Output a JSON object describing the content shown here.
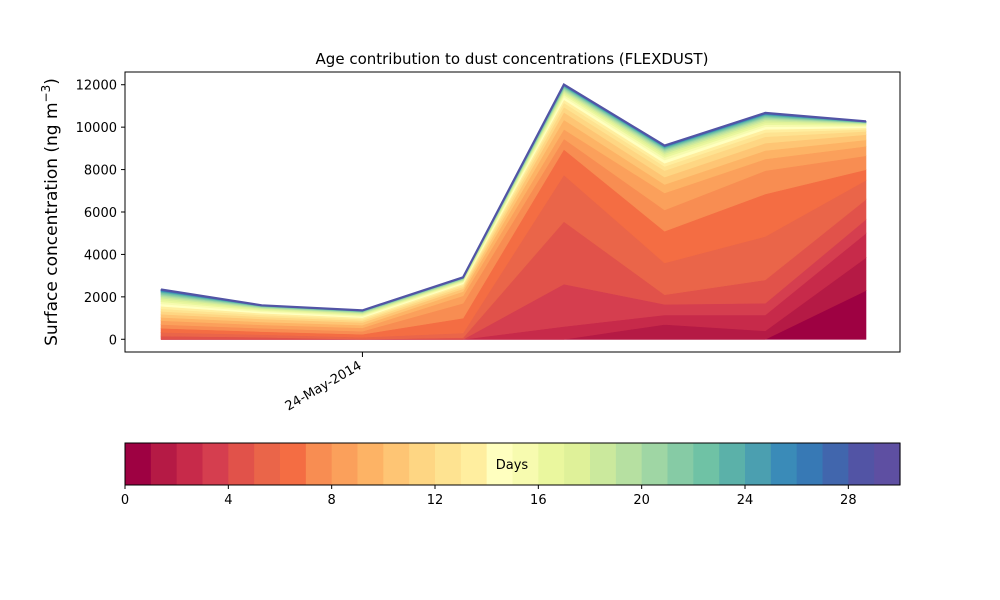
{
  "chart_data": {
    "type": "area",
    "stacked": true,
    "title": "Age contribution to dust concentrations (FLEXDUST)",
    "ylabel": "Surface concentration (ng m",
    "ylabel_sup": "−3",
    "ylabel_close": ")",
    "xlabel": "",
    "x": [
      0,
      1,
      2,
      3,
      4,
      5,
      6,
      7
    ],
    "x_tick_labels": [
      {
        "x": 2,
        "label": "24-May-2014"
      }
    ],
    "ylim": [
      -600,
      12600
    ],
    "y_ticks": [
      0,
      2000,
      4000,
      6000,
      8000,
      10000,
      12000
    ],
    "grid": false,
    "cumulative_top": [
      [
        0,
        0,
        0,
        0,
        0,
        0,
        0,
        2300
      ],
      [
        0,
        0,
        0,
        0,
        0,
        700,
        400,
        3850
      ],
      [
        0,
        0,
        0,
        0,
        600,
        1150,
        1150,
        5000
      ],
      [
        0,
        0,
        0,
        0,
        2600,
        1650,
        1700,
        5650
      ],
      [
        150,
        100,
        0,
        80,
        5550,
        2100,
        2800,
        6600
      ],
      [
        330,
        220,
        100,
        300,
        7750,
        3600,
        4850,
        7500
      ],
      [
        520,
        360,
        240,
        1000,
        8950,
        5100,
        6850,
        8000
      ],
      [
        700,
        520,
        380,
        1700,
        9450,
        6100,
        7950,
        8650
      ],
      [
        880,
        680,
        540,
        2050,
        9900,
        6900,
        8500,
        9100
      ],
      [
        1030,
        820,
        670,
        2250,
        10350,
        7300,
        8900,
        9400
      ],
      [
        1180,
        960,
        790,
        2380,
        10700,
        7650,
        9250,
        9650
      ],
      [
        1320,
        1060,
        880,
        2480,
        10950,
        7950,
        9550,
        9800
      ],
      [
        1440,
        1150,
        950,
        2560,
        11150,
        8150,
        9750,
        9900
      ],
      [
        1560,
        1230,
        1020,
        2620,
        11300,
        8300,
        9900,
        9970
      ],
      [
        1670,
        1300,
        1080,
        2670,
        11420,
        8450,
        10020,
        10030
      ],
      [
        1770,
        1360,
        1130,
        2710,
        11520,
        8570,
        10120,
        10080
      ],
      [
        1860,
        1410,
        1170,
        2750,
        11600,
        8670,
        10210,
        10120
      ],
      [
        1940,
        1450,
        1210,
        2780,
        11670,
        8760,
        10290,
        10150
      ],
      [
        2010,
        1480,
        1240,
        2810,
        11730,
        8830,
        10360,
        10170
      ],
      [
        2070,
        1510,
        1270,
        2830,
        11780,
        8890,
        10420,
        10190
      ],
      [
        2120,
        1530,
        1290,
        2850,
        11830,
        8940,
        10470,
        10210
      ],
      [
        2170,
        1550,
        1310,
        2870,
        11870,
        8980,
        10510,
        10220
      ],
      [
        2210,
        1560,
        1320,
        2880,
        11900,
        9020,
        10550,
        10230
      ],
      [
        2240,
        1570,
        1330,
        2890,
        11930,
        9050,
        10580,
        10240
      ],
      [
        2270,
        1580,
        1340,
        2900,
        11950,
        9070,
        10600,
        10250
      ],
      [
        2290,
        1585,
        1345,
        2905,
        11970,
        9090,
        10620,
        10255
      ],
      [
        2310,
        1590,
        1350,
        2910,
        11985,
        9105,
        10640,
        10260
      ],
      [
        2325,
        1595,
        1355,
        2915,
        11995,
        9115,
        10655,
        10265
      ],
      [
        2335,
        1598,
        1358,
        2918,
        12005,
        9122,
        10665,
        10268
      ],
      [
        2345,
        1600,
        1360,
        2920,
        12010,
        9128,
        10672,
        10270
      ]
    ],
    "colorbar": {
      "label": "Days",
      "range": [
        0,
        30
      ],
      "ticks": [
        0,
        4,
        8,
        12,
        16,
        20,
        24,
        28
      ],
      "colors": [
        "#9e0142",
        "#b51a45",
        "#c72a4a",
        "#d53e4f",
        "#e1524a",
        "#ea6549",
        "#f46d43",
        "#f88d52",
        "#fba05b",
        "#fdb365",
        "#fec574",
        "#fed683",
        "#fee391",
        "#ffee9f",
        "#ffffbf",
        "#f7fbaf",
        "#eaf79e",
        "#dff199",
        "#cbe99d",
        "#b6e0a1",
        "#9fd6a4",
        "#86cba5",
        "#6fc2a5",
        "#5bb1a9",
        "#4b9fb0",
        "#3a8bb8",
        "#3779b5",
        "#4166ad",
        "#5254a5",
        "#5e4fa2"
      ]
    }
  }
}
